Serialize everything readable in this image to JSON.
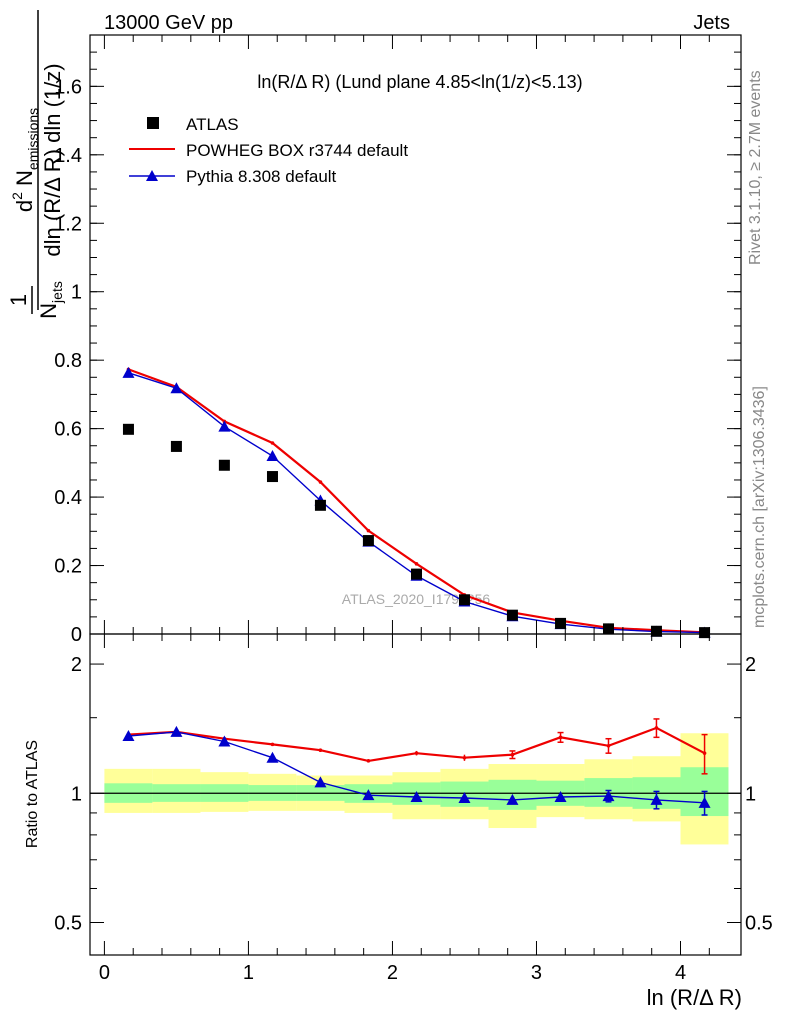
{
  "header": {
    "left": "13000 GeV pp",
    "right": "Jets"
  },
  "side_labels": {
    "rivet": "Rivet 3.1.10, ≥ 2.7M events",
    "mcplots": "mcplots.cern.ch [arXiv:1306.3436]"
  },
  "watermark": "ATLAS_2020_I1790256",
  "chart_data": [
    {
      "type": "line",
      "title": "ln(R/Δ R) (Lund plane 4.85<ln(1/z)<5.13)",
      "ylabel": "1/N_jets d²N_emissions / dln(R/Δ R) dln(1/z)",
      "ylim": [
        0,
        1.75
      ],
      "xlim": [
        -0.1,
        4.42
      ],
      "yticks": [
        0,
        0.2,
        0.4,
        0.6,
        0.8,
        1,
        1.2,
        1.4,
        1.6
      ],
      "x": [
        0.167,
        0.5,
        0.833,
        1.167,
        1.5,
        1.833,
        2.167,
        2.5,
        2.833,
        3.167,
        3.5,
        3.833,
        4.167
      ],
      "legend_position": "top-left",
      "series": [
        {
          "name": "ATLAS",
          "marker": "square",
          "color": "#000000",
          "values": [
            0.598,
            0.548,
            0.493,
            0.46,
            0.376,
            0.273,
            0.175,
            0.1,
            0.055,
            0.031,
            0.015,
            0.008,
            0.004
          ]
        },
        {
          "name": "POWHEG BOX r3744 default",
          "marker": "none",
          "color": "#ee0000",
          "values": [
            0.773,
            0.722,
            0.621,
            0.558,
            0.444,
            0.302,
            0.205,
            0.114,
            0.063,
            0.039,
            0.018,
            0.011,
            0.005
          ]
        },
        {
          "name": "Pythia 8.308 default",
          "marker": "triangle",
          "color": "#0000cc",
          "values": [
            0.763,
            0.718,
            0.606,
            0.52,
            0.39,
            0.27,
            0.17,
            0.095,
            0.052,
            0.029,
            0.014,
            0.007,
            0.004
          ]
        }
      ]
    },
    {
      "type": "line",
      "ylabel": "Ratio to ATLAS",
      "xlabel": "ln (R/Δ R)",
      "ylim": [
        0.42,
        2.35
      ],
      "yscale": "log",
      "xlim": [
        -0.1,
        4.42
      ],
      "yticks": [
        0.5,
        1,
        2
      ],
      "xticks": [
        0,
        1,
        2,
        3,
        4
      ],
      "x": [
        0.167,
        0.5,
        0.833,
        1.167,
        1.5,
        1.833,
        2.167,
        2.5,
        2.833,
        3.167,
        3.5,
        3.833,
        4.167
      ],
      "bin_edges": [
        0,
        0.333,
        0.667,
        1,
        1.333,
        1.667,
        2,
        2.333,
        2.667,
        3,
        3.333,
        3.667,
        4,
        4.333
      ],
      "bands": {
        "yellow": {
          "color": "#ffff99",
          "low": [
            0.9,
            0.9,
            0.905,
            0.91,
            0.91,
            0.9,
            0.87,
            0.87,
            0.83,
            0.88,
            0.87,
            0.86,
            0.76
          ],
          "high": [
            1.14,
            1.14,
            1.12,
            1.11,
            1.1,
            1.1,
            1.12,
            1.14,
            1.17,
            1.17,
            1.2,
            1.22,
            1.38
          ]
        },
        "green": {
          "color": "#99ff99",
          "low": [
            0.95,
            0.955,
            0.955,
            0.96,
            0.96,
            0.95,
            0.94,
            0.93,
            0.915,
            0.935,
            0.93,
            0.92,
            0.885
          ]
        },
        "green_high": [
          1.055,
          1.05,
          1.05,
          1.045,
          1.045,
          1.05,
          1.06,
          1.065,
          1.075,
          1.07,
          1.085,
          1.09,
          1.15
        ]
      },
      "series": [
        {
          "name": "POWHEG BOX r3744 default",
          "color": "#ee0000",
          "marker": "none",
          "values": [
            1.37,
            1.39,
            1.34,
            1.3,
            1.26,
            1.19,
            1.24,
            1.21,
            1.23,
            1.35,
            1.29,
            1.42,
            1.24
          ],
          "errors": [
            0.01,
            0.01,
            0.01,
            0.01,
            0.01,
            0.01,
            0.015,
            0.02,
            0.025,
            0.035,
            0.05,
            0.07,
            0.13
          ]
        },
        {
          "name": "Pythia 8.308 default",
          "color": "#0000cc",
          "marker": "triangle",
          "values": [
            1.36,
            1.39,
            1.32,
            1.21,
            1.06,
            0.99,
            0.98,
            0.975,
            0.965,
            0.98,
            0.985,
            0.965,
            0.95
          ],
          "errors": [
            0.005,
            0.005,
            0.005,
            0.005,
            0.005,
            0.007,
            0.01,
            0.012,
            0.015,
            0.02,
            0.03,
            0.045,
            0.06
          ]
        }
      ]
    }
  ]
}
